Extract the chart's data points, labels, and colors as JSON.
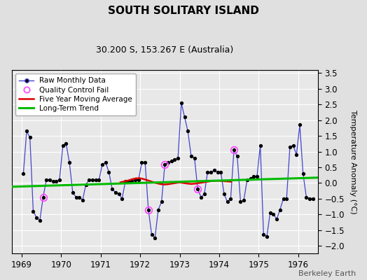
{
  "title": "SOUTH SOLITARY ISLAND",
  "subtitle": "30.200 S, 153.267 E (Australia)",
  "ylabel": "Temperature Anomaly (°C)",
  "watermark": "Berkeley Earth",
  "xlim": [
    1968.75,
    1976.5
  ],
  "ylim": [
    -2.25,
    3.6
  ],
  "yticks": [
    -2,
    -1.5,
    -1,
    -0.5,
    0,
    0.5,
    1,
    1.5,
    2,
    2.5,
    3,
    3.5
  ],
  "xticks": [
    1969,
    1970,
    1971,
    1972,
    1973,
    1974,
    1975,
    1976
  ],
  "bg_color": "#e0e0e0",
  "plot_bg_color": "#e8e8e8",
  "raw_color": "#4444cc",
  "raw_marker_color": "#000000",
  "qc_color": "#ff44ff",
  "moving_avg_color": "#dd0000",
  "trend_color": "#00bb00",
  "raw_data": [
    1969.042,
    0.3,
    1969.125,
    1.65,
    1969.208,
    1.45,
    1969.292,
    -0.9,
    1969.375,
    -1.1,
    1969.458,
    -1.2,
    1969.542,
    -0.45,
    1969.625,
    0.1,
    1969.708,
    0.1,
    1969.792,
    0.05,
    1969.875,
    0.05,
    1969.958,
    0.1,
    1970.042,
    1.2,
    1970.125,
    1.25,
    1970.208,
    0.65,
    1970.292,
    -0.3,
    1970.375,
    -0.45,
    1970.458,
    -0.45,
    1970.542,
    -0.55,
    1970.625,
    -0.05,
    1970.708,
    0.1,
    1970.792,
    0.1,
    1970.875,
    0.1,
    1970.958,
    0.1,
    1971.042,
    0.6,
    1971.125,
    0.65,
    1971.208,
    0.35,
    1971.292,
    -0.2,
    1971.375,
    -0.3,
    1971.458,
    -0.35,
    1971.542,
    -0.5,
    1971.625,
    0.05,
    1971.708,
    0.05,
    1971.792,
    0.05,
    1971.875,
    0.1,
    1971.958,
    0.1,
    1972.042,
    0.65,
    1972.125,
    0.65,
    1972.208,
    -0.85,
    1972.292,
    -1.65,
    1972.375,
    -1.75,
    1972.458,
    -0.85,
    1972.542,
    -0.6,
    1972.625,
    0.6,
    1972.708,
    0.65,
    1972.792,
    0.7,
    1972.875,
    0.75,
    1972.958,
    0.8,
    1973.042,
    2.55,
    1973.125,
    2.1,
    1973.208,
    1.65,
    1973.292,
    0.85,
    1973.375,
    0.8,
    1973.458,
    -0.2,
    1973.542,
    -0.45,
    1973.625,
    -0.35,
    1973.708,
    0.35,
    1973.792,
    0.35,
    1973.875,
    0.4,
    1973.958,
    0.35,
    1974.042,
    0.35,
    1974.125,
    -0.35,
    1974.208,
    -0.6,
    1974.292,
    -0.5,
    1974.375,
    1.05,
    1974.458,
    0.85,
    1974.542,
    -0.6,
    1974.625,
    -0.55,
    1974.708,
    0.1,
    1974.792,
    0.15,
    1974.875,
    0.2,
    1974.958,
    0.2,
    1975.042,
    1.2,
    1975.125,
    -1.65,
    1975.208,
    -1.7,
    1975.292,
    -0.95,
    1975.375,
    -1.0,
    1975.458,
    -1.15,
    1975.542,
    -0.85,
    1975.625,
    -0.5,
    1975.708,
    -0.5,
    1975.792,
    1.15,
    1975.875,
    1.2,
    1975.958,
    0.9,
    1976.042,
    1.85,
    1976.125,
    0.3,
    1976.208,
    -0.45,
    1976.292,
    -0.5,
    1976.375,
    -0.5
  ],
  "qc_fail_points": [
    [
      1969.542,
      -0.45
    ],
    [
      1972.208,
      -0.85
    ],
    [
      1972.625,
      0.6
    ],
    [
      1973.458,
      -0.2
    ],
    [
      1974.375,
      1.05
    ]
  ],
  "moving_avg_x": [
    1971.5,
    1971.6,
    1971.7,
    1971.8,
    1971.9,
    1972.0,
    1972.1,
    1972.2,
    1972.3,
    1972.4,
    1972.5,
    1972.6,
    1972.7,
    1972.8,
    1972.9,
    1973.0,
    1973.1,
    1973.2,
    1973.3,
    1973.4,
    1973.5,
    1973.6,
    1973.7,
    1973.8,
    1973.9,
    1974.0,
    1974.1,
    1974.2,
    1974.3
  ],
  "moving_avg_y": [
    0.02,
    0.05,
    0.08,
    0.12,
    0.15,
    0.15,
    0.12,
    0.08,
    0.04,
    0.0,
    -0.03,
    -0.05,
    -0.04,
    -0.02,
    0.0,
    0.02,
    0.0,
    -0.02,
    -0.03,
    -0.02,
    0.0,
    0.02,
    0.04,
    0.06,
    0.07,
    0.07,
    0.06,
    0.05,
    0.04
  ],
  "trend_x": [
    1968.75,
    1976.5
  ],
  "trend_y": [
    -0.12,
    0.17
  ],
  "legend_fontsize": 7.5,
  "title_fontsize": 11,
  "subtitle_fontsize": 9,
  "tick_fontsize": 8.5,
  "ylabel_fontsize": 8
}
